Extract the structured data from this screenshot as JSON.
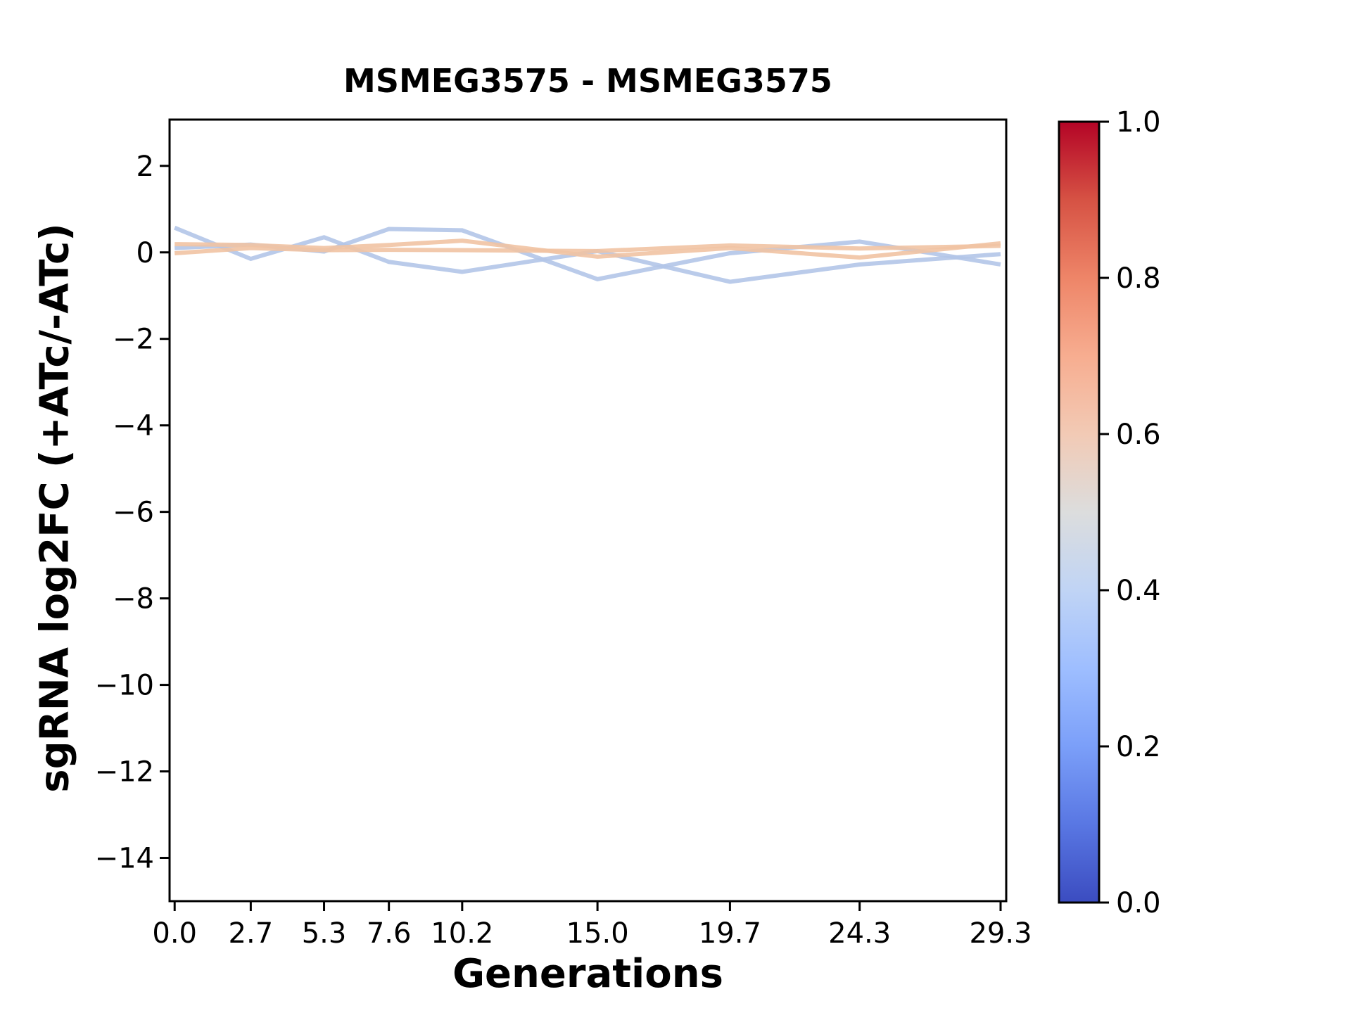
{
  "chart_data": {
    "type": "line",
    "title": "MSMEG3575 - MSMEG3575",
    "xlabel": "Generations",
    "ylabel": "sgRNA log2FC (+ATc/-ATc)",
    "x": [
      0.0,
      2.7,
      5.3,
      7.6,
      10.2,
      15.0,
      19.7,
      24.3,
      29.3
    ],
    "x_tick_labels": [
      "0.0",
      "2.7",
      "5.3",
      "7.6",
      "10.2",
      "15.0",
      "19.7",
      "24.3",
      "29.3"
    ],
    "y_ticks": [
      2,
      0,
      -2,
      -4,
      -6,
      -8,
      -10,
      -12,
      -14
    ],
    "y_tick_labels": [
      "2",
      "0",
      "−2",
      "−4",
      "−6",
      "−8",
      "−10",
      "−12",
      "−14"
    ],
    "xlim": [
      -0.18,
      29.5
    ],
    "ylim": [
      -15.0,
      3.07
    ],
    "grid": false,
    "legend": "none",
    "background": "#ffffff",
    "spine_color": "#000000",
    "series": [
      {
        "name": "line-1",
        "color": "#b3c5e8",
        "values": [
          0.57,
          -0.15,
          0.35,
          -0.22,
          -0.45,
          0.03,
          -0.68,
          -0.28,
          -0.04
        ]
      },
      {
        "name": "line-2",
        "color": "#b3c5e8",
        "values": [
          0.1,
          0.18,
          0.02,
          0.54,
          0.51,
          -0.62,
          -0.02,
          0.25,
          -0.28
        ]
      },
      {
        "name": "line-3",
        "color": "#f1c3a3",
        "values": [
          0.19,
          0.17,
          0.1,
          0.17,
          0.27,
          -0.1,
          0.1,
          -0.12,
          0.21
        ]
      },
      {
        "name": "line-4",
        "color": "#f1c3a3",
        "values": [
          -0.02,
          0.1,
          0.05,
          0.06,
          0.05,
          0.03,
          0.16,
          0.09,
          0.15
        ]
      }
    ],
    "colorbar": {
      "tick_labels": [
        "0.0",
        "0.2",
        "0.4",
        "0.6",
        "0.8",
        "1.0"
      ],
      "tick_values": [
        0.0,
        0.2,
        0.4,
        0.6,
        0.8,
        1.0
      ],
      "colormap": "coolwarm",
      "gradient_stops": [
        {
          "pos": 0.0,
          "color": "#3b4cc0"
        },
        {
          "pos": 0.1,
          "color": "#5977e3"
        },
        {
          "pos": 0.2,
          "color": "#7b9ff9"
        },
        {
          "pos": 0.3,
          "color": "#9ebeff"
        },
        {
          "pos": 0.4,
          "color": "#c0d4f5"
        },
        {
          "pos": 0.5,
          "color": "#dcdddd"
        },
        {
          "pos": 0.6,
          "color": "#f2cab5"
        },
        {
          "pos": 0.7,
          "color": "#f7ad90"
        },
        {
          "pos": 0.8,
          "color": "#ee8568"
        },
        {
          "pos": 0.9,
          "color": "#d65244"
        },
        {
          "pos": 1.0,
          "color": "#b40426"
        }
      ]
    }
  }
}
